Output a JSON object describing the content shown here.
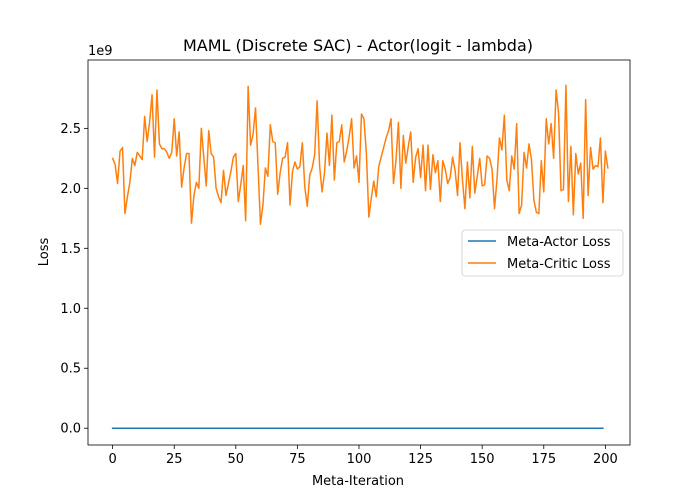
{
  "chart_data": {
    "type": "line",
    "title": "MAML (Discrete SAC) - Actor(logit - lambda)",
    "xlabel": "Meta-Iteration",
    "ylabel": "Loss",
    "y_offset_label": "1e9",
    "xlim": [
      -10,
      210
    ],
    "ylim": [
      -0.14,
      3.07
    ],
    "xticks": [
      0,
      25,
      50,
      75,
      100,
      125,
      150,
      175,
      200
    ],
    "yticks": [
      0.0,
      0.5,
      1.0,
      1.5,
      2.0,
      2.5
    ],
    "xtick_labels": [
      "0",
      "25",
      "50",
      "75",
      "100",
      "125",
      "150",
      "175",
      "200"
    ],
    "ytick_labels": [
      "0.0",
      "0.5",
      "1.0",
      "1.5",
      "2.0",
      "2.5"
    ],
    "legend": {
      "location": "center-right"
    },
    "series": [
      {
        "name": "Meta-Actor Loss",
        "color": "#1f77b4",
        "x_start": 0,
        "values": [
          0,
          0,
          0,
          0,
          0,
          0,
          0,
          0,
          0,
          0,
          0,
          0,
          0,
          0,
          0,
          0,
          0,
          0,
          0,
          0,
          0,
          0,
          0,
          0,
          0,
          0,
          0,
          0,
          0,
          0,
          0,
          0,
          0,
          0,
          0,
          0,
          0,
          0,
          0,
          0,
          0,
          0,
          0,
          0,
          0,
          0,
          0,
          0,
          0,
          0,
          0,
          0,
          0,
          0,
          0,
          0,
          0,
          0,
          0,
          0,
          0,
          0,
          0,
          0,
          0,
          0,
          0,
          0,
          0,
          0,
          0,
          0,
          0,
          0,
          0,
          0,
          0,
          0,
          0,
          0,
          0,
          0,
          0,
          0,
          0,
          0,
          0,
          0,
          0,
          0,
          0,
          0,
          0,
          0,
          0,
          0,
          0,
          0,
          0,
          0,
          0,
          0,
          0,
          0,
          0,
          0,
          0,
          0,
          0,
          0,
          0,
          0,
          0,
          0,
          0,
          0,
          0,
          0,
          0,
          0,
          0,
          0,
          0,
          0,
          0,
          0,
          0,
          0,
          0,
          0,
          0,
          0,
          0,
          0,
          0,
          0,
          0,
          0,
          0,
          0,
          0,
          0,
          0,
          0,
          0,
          0,
          0,
          0,
          0,
          0,
          0,
          0,
          0,
          0,
          0,
          0,
          0,
          0,
          0,
          0,
          0,
          0,
          0,
          0,
          0,
          0,
          0,
          0,
          0,
          0,
          0,
          0,
          0,
          0,
          0,
          0,
          0,
          0,
          0,
          0,
          0,
          0,
          0,
          0,
          0,
          0,
          0,
          0,
          0,
          0,
          0,
          0,
          0,
          0,
          0,
          0,
          0,
          0,
          0,
          0
        ]
      },
      {
        "name": "Meta-Critic Loss",
        "color": "#ff7f0e",
        "x_start": 0,
        "values": [
          2.25,
          2.2,
          2.04,
          2.31,
          2.34,
          1.79,
          1.93,
          2.05,
          2.25,
          2.19,
          2.3,
          2.27,
          2.24,
          2.6,
          2.39,
          2.55,
          2.78,
          2.26,
          2.82,
          2.37,
          2.33,
          2.33,
          2.3,
          2.25,
          2.3,
          2.58,
          2.27,
          2.47,
          2.01,
          2.17,
          2.29,
          2.29,
          1.71,
          1.94,
          2.05,
          2.0,
          2.5,
          2.26,
          2.02,
          2.48,
          2.29,
          2.26,
          2.0,
          1.93,
          1.88,
          2.15,
          1.94,
          2.04,
          2.14,
          2.26,
          2.29,
          1.89,
          2.03,
          2.19,
          1.73,
          2.85,
          2.36,
          2.45,
          2.67,
          2.19,
          1.7,
          1.86,
          2.17,
          2.1,
          2.53,
          2.39,
          2.38,
          1.95,
          2.13,
          2.25,
          2.26,
          2.38,
          1.86,
          2.14,
          2.22,
          2.16,
          2.18,
          2.38,
          2.01,
          1.85,
          2.11,
          2.17,
          2.28,
          2.73,
          2.19,
          1.97,
          2.13,
          2.46,
          2.19,
          2.61,
          2.07,
          2.38,
          2.39,
          2.53,
          2.22,
          2.31,
          2.43,
          2.58,
          2.17,
          2.27,
          2.05,
          2.62,
          2.58,
          2.29,
          1.76,
          1.92,
          2.06,
          1.93,
          2.18,
          2.26,
          2.34,
          2.42,
          2.48,
          2.58,
          2.04,
          2.23,
          2.55,
          2.0,
          2.44,
          2.21,
          2.35,
          2.47,
          2.05,
          2.26,
          2.33,
          2.09,
          2.36,
          1.98,
          2.36,
          1.99,
          2.28,
          2.13,
          2.23,
          1.89,
          2.23,
          2.16,
          2.04,
          2.09,
          2.26,
          2.15,
          1.94,
          2.38,
          2.07,
          1.83,
          2.22,
          1.92,
          2.35,
          1.96,
          2.1,
          2.25,
          2.02,
          2.03,
          2.27,
          2.25,
          2.16,
          1.83,
          2.07,
          2.42,
          2.32,
          2.61,
          2.07,
          1.98,
          2.27,
          2.16,
          2.54,
          1.79,
          1.86,
          2.3,
          2.17,
          2.37,
          2.24,
          1.9,
          1.8,
          1.79,
          2.23,
          1.97,
          2.58,
          2.37,
          2.54,
          2.25,
          2.82,
          2.63,
          1.98,
          1.99,
          2.86,
          1.89,
          2.35,
          1.78,
          2.29,
          2.12,
          2.21,
          1.75,
          2.74,
          1.94,
          2.34,
          2.16,
          2.19,
          2.18,
          2.42,
          1.88,
          2.31,
          2.17
        ]
      }
    ]
  }
}
